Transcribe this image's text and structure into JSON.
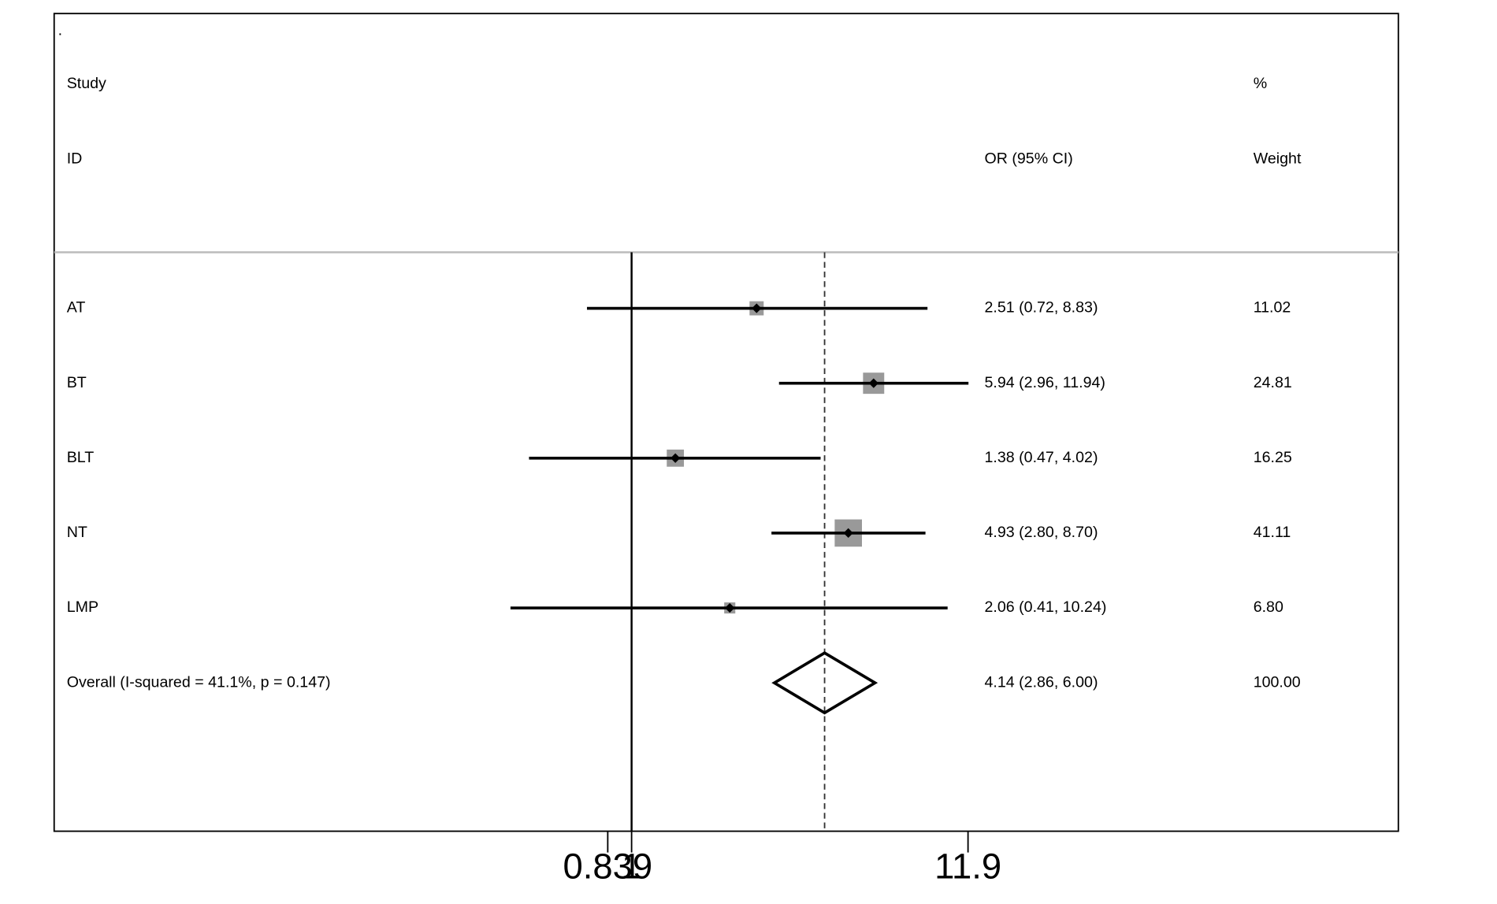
{
  "chart_data": {
    "type": "forest",
    "corner_mark": ".",
    "headers": {
      "study": "Study",
      "id": "ID",
      "effect": "OR (95% CI)",
      "pct": "%",
      "weight": "Weight"
    },
    "categories": [
      "AT",
      "BT",
      "BLT",
      "NT",
      "LMP"
    ],
    "values": [
      2.51,
      5.94,
      1.38,
      4.93,
      2.06
    ],
    "lower": [
      0.72,
      2.96,
      0.47,
      2.8,
      0.41
    ],
    "upper": [
      8.83,
      11.94,
      4.02,
      8.7,
      10.24
    ],
    "value_labels": [
      "2.51 (0.72, 8.83)",
      "5.94 (2.96, 11.94)",
      "1.38 (0.47, 4.02)",
      "4.93 (2.80, 8.70)",
      "2.06 (0.41, 10.24)"
    ],
    "weights": [
      11.02,
      24.81,
      16.25,
      41.11,
      6.8
    ],
    "weight_labels": [
      "11.02",
      "24.81",
      "16.25",
      "41.11",
      "6.80"
    ],
    "overall": {
      "label": "Overall  (I-squared = 41.1%, p = 0.147)",
      "value": 4.14,
      "lower": 2.86,
      "upper": 6.0,
      "value_label": "4.14 (2.86, 6.00)",
      "weight": 100,
      "weight_label": "100.00"
    },
    "null_line": 1,
    "xscale": "log",
    "xlim": [
      0.0839,
      11.9
    ],
    "xticks": [
      0.839,
      1,
      11.9
    ],
    "box_color": "#999999",
    "line_color": "#000000"
  }
}
